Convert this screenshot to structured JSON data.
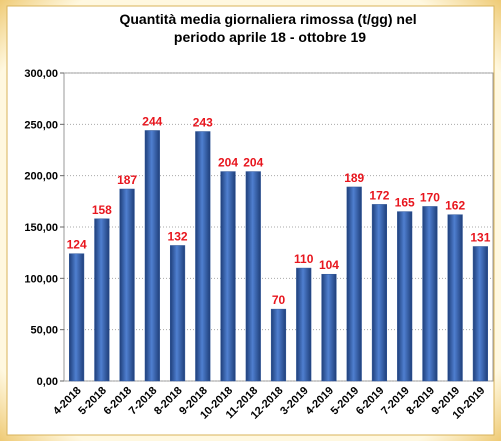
{
  "chart_data": {
    "type": "bar",
    "title": [
      "Quantità media giornaliera rimossa (t/gg) nel",
      "periodo aprile 18 - ottobre 19"
    ],
    "categories": [
      "4-2018",
      "5-2018",
      "6-2018",
      "7-2018",
      "8-2018",
      "9-2018",
      "10-2018",
      "11-2018",
      "12-2018",
      "3-2019",
      "4-2019",
      "5-2019",
      "6-2019",
      "7-2019",
      "8-2019",
      "9-2019",
      "10-2019"
    ],
    "values": [
      124,
      158,
      187,
      244,
      132,
      243,
      204,
      204,
      70,
      110,
      104,
      189,
      172,
      165,
      170,
      162,
      131
    ],
    "color": "#2f5597",
    "label_color": "#e8161e",
    "ylim": [
      0,
      300
    ],
    "yticks": [
      {
        "value": 0,
        "label": "0,00"
      },
      {
        "value": 50,
        "label": "50,00"
      },
      {
        "value": 100,
        "label": "100,00"
      },
      {
        "value": 150,
        "label": "150,00"
      },
      {
        "value": 200,
        "label": "200,00"
      },
      {
        "value": 250,
        "label": "250,00"
      },
      {
        "value": 300,
        "label": "300,00"
      }
    ],
    "grid": true
  }
}
